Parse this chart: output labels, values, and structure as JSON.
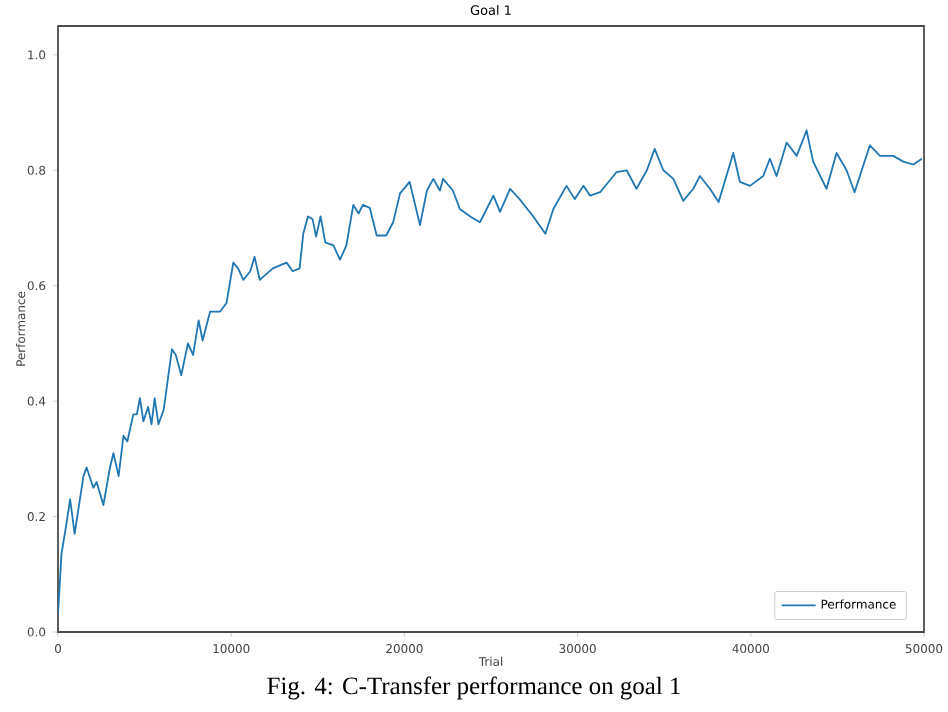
{
  "chart_data": {
    "type": "line",
    "title": "Goal 1",
    "xlabel": "Trial",
    "ylabel": "Performance",
    "annotations": [
      "Fig. 4: C-Transfer performance on goal 1"
    ],
    "xlim": [
      0,
      50000
    ],
    "ylim": [
      0,
      1.05
    ],
    "xticks": [
      0,
      10000,
      20000,
      30000,
      40000,
      50000
    ],
    "yticks": [
      {
        "value": 0,
        "label": "0.0"
      },
      {
        "value": 0.2,
        "label": "0.2"
      },
      {
        "value": 0.4,
        "label": "0.4"
      },
      {
        "value": 0.6,
        "label": "0.6"
      },
      {
        "value": 0.8,
        "label": "0.8"
      },
      {
        "value": 1.0,
        "label": "1.0"
      }
    ],
    "legend": "bottom right",
    "grid": false,
    "marker": "none",
    "line_style": "solid",
    "series": [
      {
        "name": "Performance",
        "color": "#1f77b4",
        "x": [
          0,
          200,
          500,
          700,
          960,
          1470,
          1650,
          2040,
          2230,
          2620,
          3000,
          3200,
          3500,
          3780,
          4000,
          4350,
          4550,
          4730,
          4930,
          5200,
          5400,
          5580,
          5800,
          6100,
          6580,
          6800,
          7120,
          7500,
          7800,
          8120,
          8350,
          8780,
          9350,
          9730,
          10120,
          10400,
          10700,
          11100,
          11350,
          11650,
          12400,
          13200,
          13550,
          13950,
          14160,
          14430,
          14700,
          14900,
          15160,
          15430,
          15900,
          16280,
          16650,
          17050,
          17350,
          17600,
          18000,
          18400,
          18950,
          19350,
          19750,
          20300,
          20900,
          21300,
          21670,
          22050,
          22230,
          22800,
          23200,
          23800,
          24360,
          25140,
          25520,
          26100,
          26650,
          27440,
          28140,
          28600,
          29360,
          29830,
          30340,
          30720,
          31300,
          32250,
          32830,
          33400,
          34000,
          34450,
          34950,
          35530,
          36100,
          36680,
          37060,
          37640,
          38140,
          38990,
          39370,
          39950,
          40720,
          41100,
          41490,
          42070,
          42650,
          43220,
          43600,
          44370,
          44950,
          45530,
          45990,
          46870,
          47460,
          48230,
          48800,
          49380,
          49880
        ],
        "values": [
          0.03,
          0.135,
          0.19,
          0.23,
          0.17,
          0.27,
          0.285,
          0.25,
          0.26,
          0.22,
          0.285,
          0.31,
          0.27,
          0.34,
          0.33,
          0.377,
          0.377,
          0.405,
          0.365,
          0.39,
          0.36,
          0.405,
          0.36,
          0.385,
          0.49,
          0.48,
          0.445,
          0.5,
          0.48,
          0.54,
          0.505,
          0.555,
          0.555,
          0.57,
          0.64,
          0.63,
          0.61,
          0.625,
          0.65,
          0.61,
          0.63,
          0.64,
          0.625,
          0.63,
          0.69,
          0.72,
          0.715,
          0.685,
          0.72,
          0.675,
          0.67,
          0.645,
          0.67,
          0.74,
          0.725,
          0.74,
          0.735,
          0.687,
          0.687,
          0.71,
          0.76,
          0.78,
          0.705,
          0.765,
          0.785,
          0.765,
          0.785,
          0.765,
          0.733,
          0.72,
          0.71,
          0.756,
          0.728,
          0.768,
          0.75,
          0.72,
          0.69,
          0.733,
          0.773,
          0.75,
          0.773,
          0.756,
          0.762,
          0.797,
          0.8,
          0.768,
          0.8,
          0.837,
          0.8,
          0.785,
          0.747,
          0.768,
          0.79,
          0.768,
          0.745,
          0.83,
          0.78,
          0.773,
          0.79,
          0.82,
          0.79,
          0.848,
          0.825,
          0.869,
          0.815,
          0.768,
          0.83,
          0.8,
          0.762,
          0.843,
          0.825,
          0.825,
          0.815,
          0.81,
          0.82
        ]
      }
    ]
  }
}
